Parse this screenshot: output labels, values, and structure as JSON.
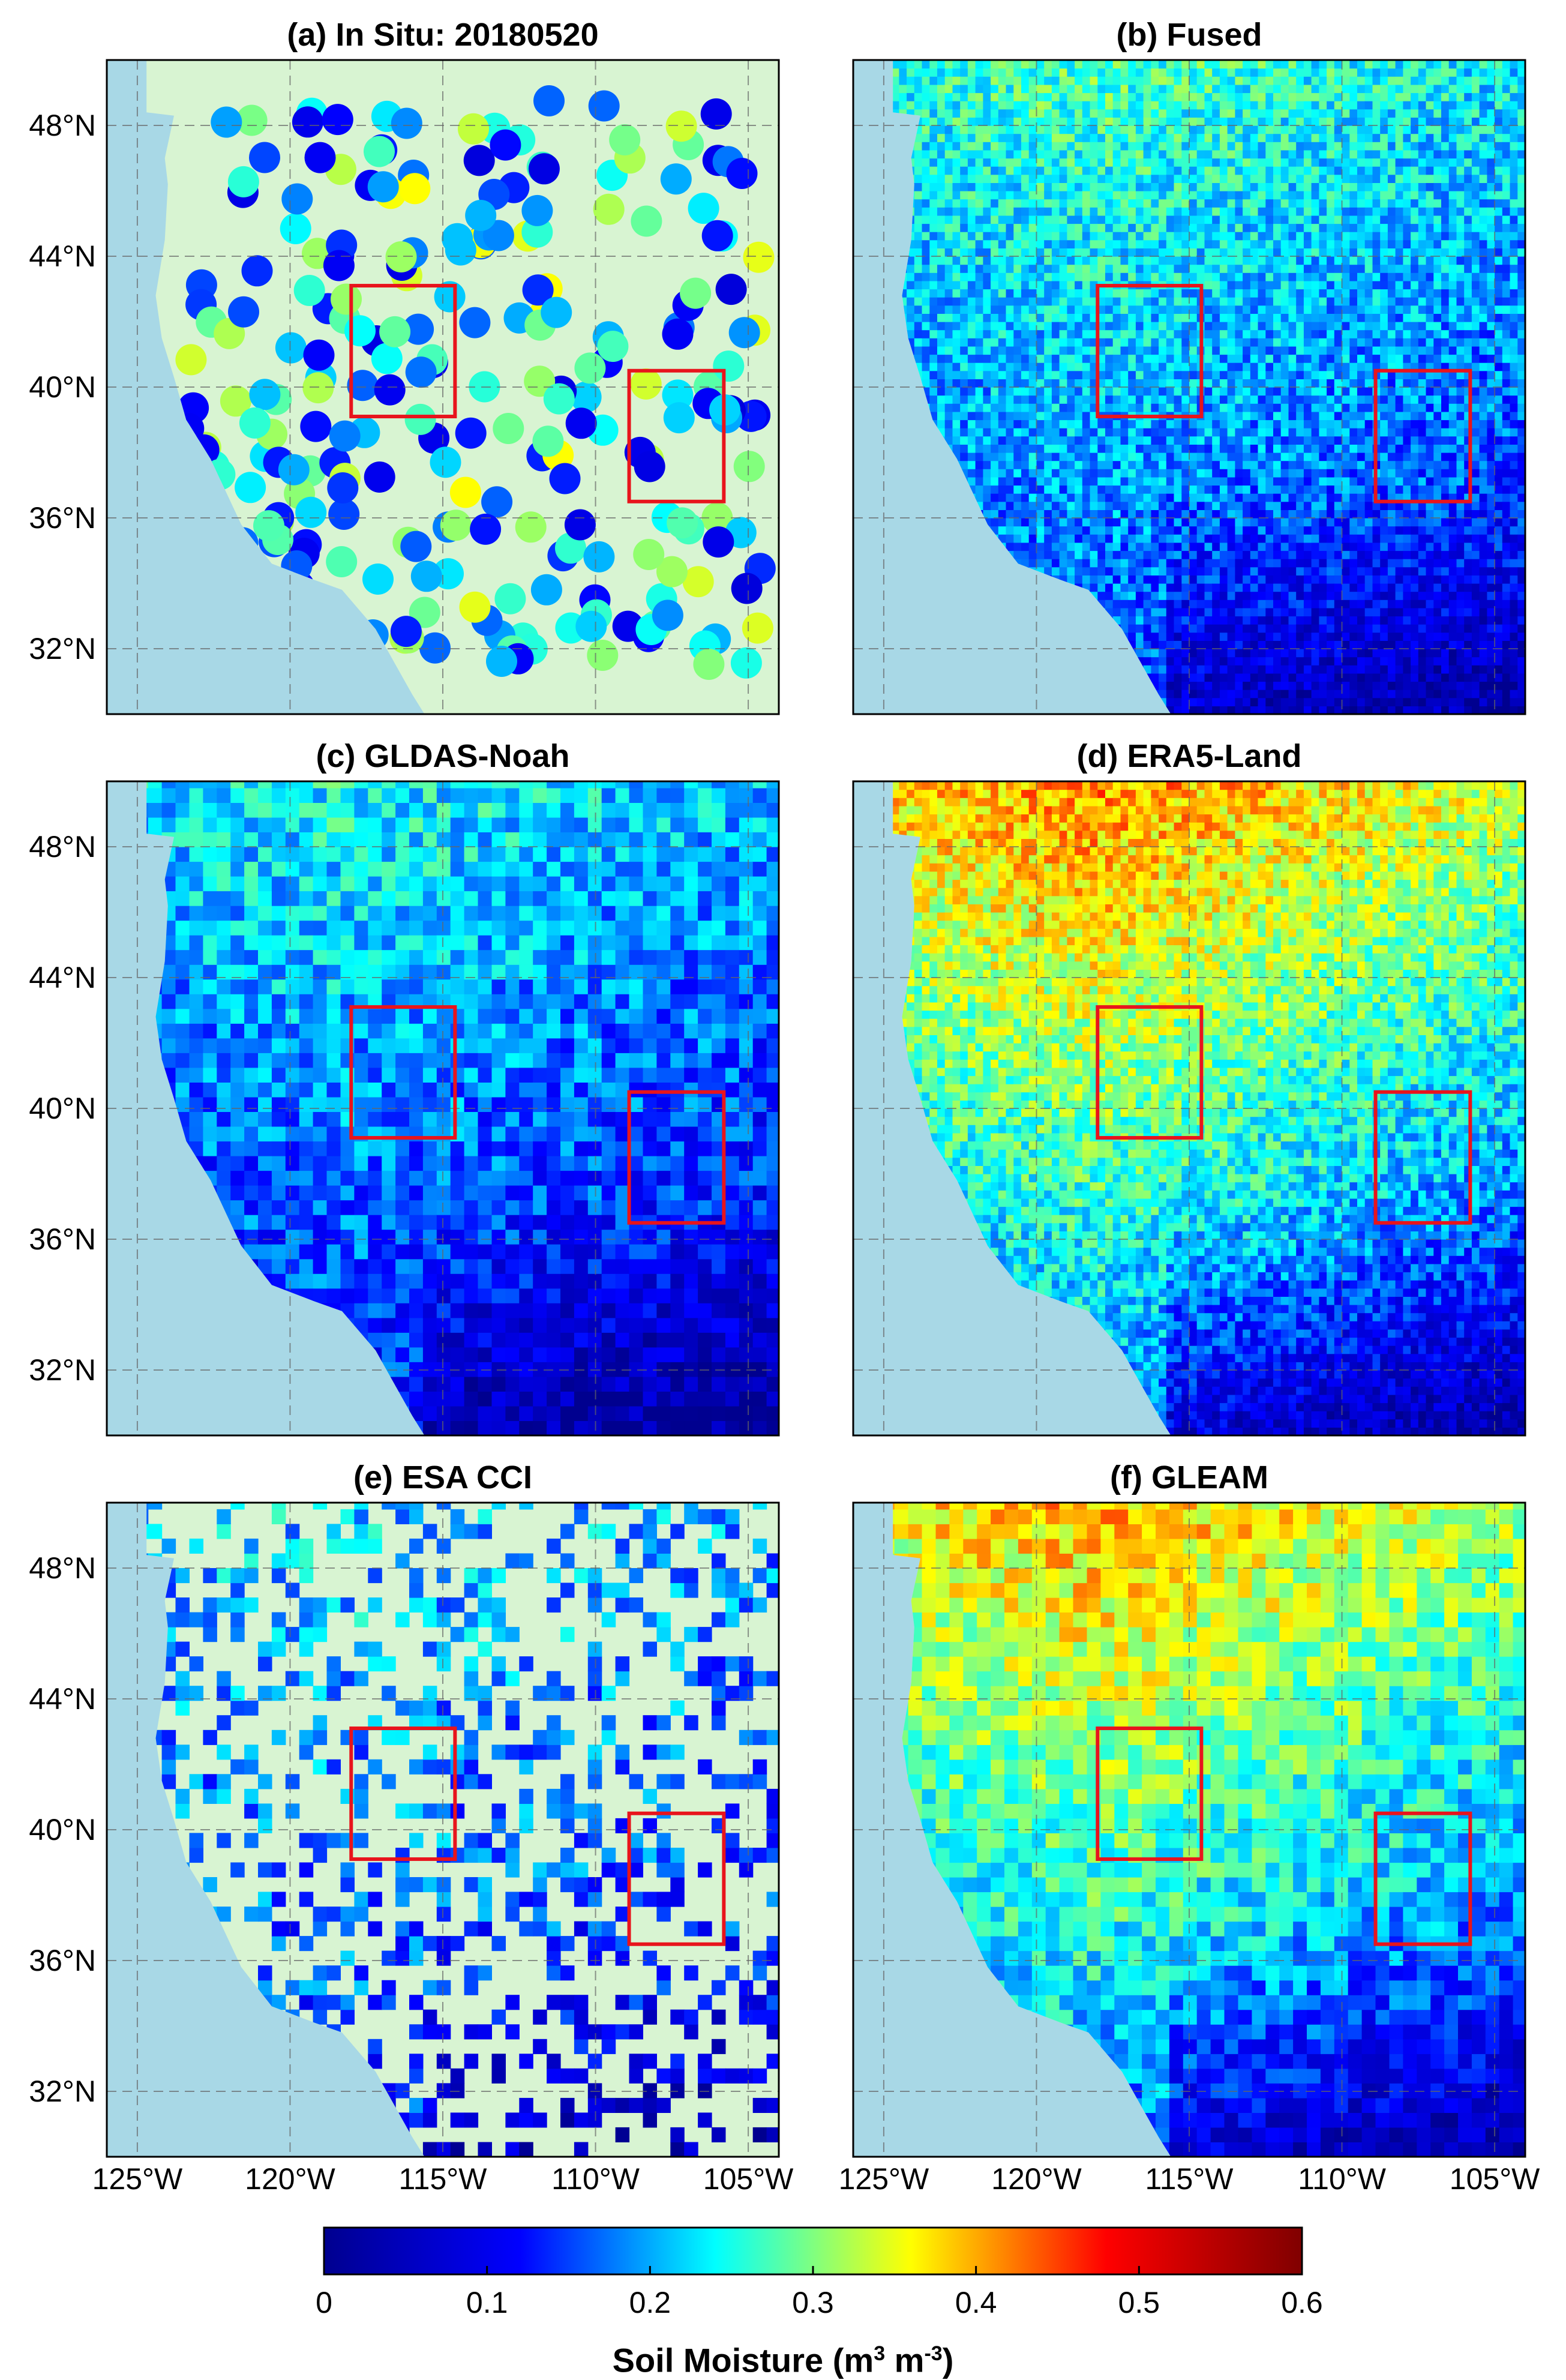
{
  "panels": [
    {
      "id": "a",
      "title": "(a) In Situ: 20180520",
      "style": "stations",
      "dry": 0.3,
      "wet": 0.25,
      "scale": 1
    },
    {
      "id": "b",
      "title": "(b) Fused",
      "style": "fine",
      "dry": 0.08,
      "wet": 0.28,
      "scale": 1
    },
    {
      "id": "c",
      "title": "(c) GLDAS-Noah",
      "style": "coarse",
      "dry": 0.06,
      "wet": 0.25,
      "scale": 1
    },
    {
      "id": "d",
      "title": "(d) ERA5-Land",
      "style": "fine",
      "dry": 0.05,
      "wet": 0.42,
      "scale": 1
    },
    {
      "id": "e",
      "title": "(e) ESA CCI",
      "style": "sparse",
      "dry": 0.1,
      "wet": 0.22,
      "scale": 1
    },
    {
      "id": "f",
      "title": "(f) GLEAM",
      "style": "coarse",
      "dry": 0.06,
      "wet": 0.4,
      "scale": 1
    }
  ],
  "map": {
    "lon_range": [
      -126,
      -104
    ],
    "lat_range": [
      30,
      50
    ],
    "lat_ticks": [
      {
        "value": 48,
        "label": "48°N"
      },
      {
        "value": 44,
        "label": "44°N"
      },
      {
        "value": 40,
        "label": "40°N"
      },
      {
        "value": 36,
        "label": "36°N"
      },
      {
        "value": 32,
        "label": "32°N"
      }
    ],
    "lon_ticks": [
      {
        "value": -125,
        "label": "125°W"
      },
      {
        "value": -120,
        "label": "120°W"
      },
      {
        "value": -115,
        "label": "115°W"
      },
      {
        "value": -110,
        "label": "110°W"
      },
      {
        "value": -105,
        "label": "105°W"
      }
    ],
    "study_boxes": [
      {
        "lon": [
          -118,
          -114.6
        ],
        "lat": [
          39.1,
          43.1
        ]
      },
      {
        "lon": [
          -108.9,
          -105.8
        ],
        "lat": [
          36.5,
          40.5
        ]
      }
    ],
    "colors": {
      "ocean": "#a8d8e6",
      "land_nodata": "#d8f4d2",
      "box": "#e8141c",
      "grid": "#666666"
    }
  },
  "colorbar": {
    "range": [
      0,
      0.6
    ],
    "ticks": [
      {
        "value": 0,
        "label": "0"
      },
      {
        "value": 0.1,
        "label": "0.1"
      },
      {
        "value": 0.2,
        "label": "0.2"
      },
      {
        "value": 0.3,
        "label": "0.3"
      },
      {
        "value": 0.4,
        "label": "0.4"
      },
      {
        "value": 0.5,
        "label": "0.5"
      },
      {
        "value": 0.6,
        "label": "0.6"
      }
    ],
    "colormap": [
      "#00008f",
      "#0000ff",
      "#00ffff",
      "#ffff00",
      "#ff0000",
      "#800000"
    ],
    "title_main": "Soil Moisture (m",
    "title_sup1": "3",
    "title_mid": " m",
    "title_sup2": "-3",
    "title_end": ")"
  }
}
